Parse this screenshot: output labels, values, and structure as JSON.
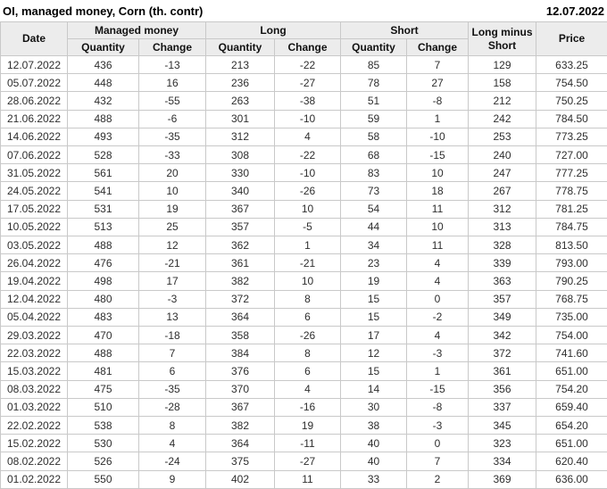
{
  "page_header": {
    "title": "OI, managed money, Corn (th. contr)",
    "report_date": "12.07.2022"
  },
  "colors": {
    "positive": "#0f9d0f",
    "negative": "#cc1111",
    "header_bg": "#ececec",
    "border": "#c9c9c9",
    "text": "#2e2e2e"
  },
  "table": {
    "columns": {
      "date": "Date",
      "groups": [
        {
          "label": "Managed money",
          "sub": [
            "Quantity",
            "Change"
          ]
        },
        {
          "label": "Long",
          "sub": [
            "Quantity",
            "Change"
          ]
        },
        {
          "label": "Short",
          "sub": [
            "Quantity",
            "Change"
          ]
        }
      ],
      "long_minus_short": "Long minus Short",
      "price": "Price"
    }
  },
  "chart_data": {
    "type": "table",
    "title": "OI, managed money, Corn (th. contr)",
    "columns": [
      "Date",
      "Managed money Quantity",
      "Managed money Change",
      "Long Quantity",
      "Long Change",
      "Short Quantity",
      "Short Change",
      "Long minus Short",
      "Price"
    ],
    "rows": [
      [
        "12.07.2022",
        436,
        -13,
        213,
        -22,
        85,
        7,
        129,
        "633.25"
      ],
      [
        "05.07.2022",
        448,
        16,
        236,
        -27,
        78,
        27,
        158,
        "754.50"
      ],
      [
        "28.06.2022",
        432,
        -55,
        263,
        -38,
        51,
        -8,
        212,
        "750.25"
      ],
      [
        "21.06.2022",
        488,
        -6,
        301,
        -10,
        59,
        1,
        242,
        "784.50"
      ],
      [
        "14.06.2022",
        493,
        -35,
        312,
        4,
        58,
        -10,
        253,
        "773.25"
      ],
      [
        "07.06.2022",
        528,
        -33,
        308,
        -22,
        68,
        -15,
        240,
        "727.00"
      ],
      [
        "31.05.2022",
        561,
        20,
        330,
        -10,
        83,
        10,
        247,
        "777.25"
      ],
      [
        "24.05.2022",
        541,
        10,
        340,
        -26,
        73,
        18,
        267,
        "778.75"
      ],
      [
        "17.05.2022",
        531,
        19,
        367,
        10,
        54,
        11,
        312,
        "781.25"
      ],
      [
        "10.05.2022",
        513,
        25,
        357,
        -5,
        44,
        10,
        313,
        "784.75"
      ],
      [
        "03.05.2022",
        488,
        12,
        362,
        1,
        34,
        11,
        328,
        "813.50"
      ],
      [
        "26.04.2022",
        476,
        -21,
        361,
        -21,
        23,
        4,
        339,
        "793.00"
      ],
      [
        "19.04.2022",
        498,
        17,
        382,
        10,
        19,
        4,
        363,
        "790.25"
      ],
      [
        "12.04.2022",
        480,
        -3,
        372,
        8,
        15,
        0,
        357,
        "768.75"
      ],
      [
        "05.04.2022",
        483,
        13,
        364,
        6,
        15,
        -2,
        349,
        "735.00"
      ],
      [
        "29.03.2022",
        470,
        -18,
        358,
        -26,
        17,
        4,
        342,
        "754.00"
      ],
      [
        "22.03.2022",
        488,
        7,
        384,
        8,
        12,
        -3,
        372,
        "741.60"
      ],
      [
        "15.03.2022",
        481,
        6,
        376,
        6,
        15,
        1,
        361,
        "651.00"
      ],
      [
        "08.03.2022",
        475,
        -35,
        370,
        4,
        14,
        -15,
        356,
        "754.20"
      ],
      [
        "01.03.2022",
        510,
        -28,
        367,
        -16,
        30,
        -8,
        337,
        "659.40"
      ],
      [
        "22.02.2022",
        538,
        8,
        382,
        19,
        38,
        -3,
        345,
        "654.20"
      ],
      [
        "15.02.2022",
        530,
        4,
        364,
        -11,
        40,
        0,
        323,
        "651.00"
      ],
      [
        "08.02.2022",
        526,
        -24,
        375,
        -27,
        40,
        7,
        334,
        "620.40"
      ],
      [
        "01.02.2022",
        550,
        9,
        402,
        11,
        33,
        2,
        369,
        "636.00"
      ]
    ]
  }
}
